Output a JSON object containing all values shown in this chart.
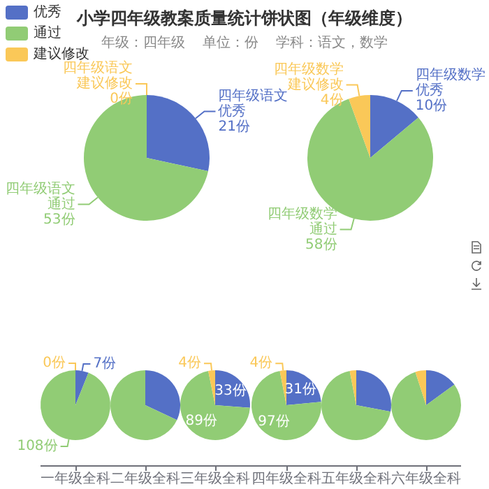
{
  "chart_data": [
    {
      "type": "pie",
      "title": "小学四年级教案质量统计饼状图（年级维度）",
      "subtitle": "年级：四年级    单位：份    学科：语文，数学",
      "legend": "top left",
      "categories": [
        "优秀",
        "通过",
        "建议修改"
      ],
      "series": [
        {
          "name": "四年级语文",
          "values": [
            21,
            53,
            0
          ],
          "colors": [
            "#5470c6",
            "#91cc75",
            "#fac858"
          ],
          "value_labels": [
            "21份",
            "53份",
            "0份"
          ]
        }
      ]
    },
    {
      "type": "pie",
      "categories": [
        "优秀",
        "通过",
        "建议修改"
      ],
      "series": [
        {
          "name": "四年级数学",
          "values": [
            10,
            58,
            4
          ],
          "colors": [
            "#5470c6",
            "#91cc75",
            "#fac858"
          ],
          "value_labels": [
            "10份",
            "58份",
            "4份"
          ]
        }
      ]
    },
    {
      "type": "pie",
      "title": "一年级全科",
      "categories": [
        null,
        null,
        null
      ],
      "values": [
        7,
        108,
        0
      ],
      "colors": [
        "#5470c6",
        "#91cc75",
        "#fac858"
      ],
      "value_labels": [
        "7份",
        "108份",
        "0份"
      ]
    },
    {
      "type": "pie",
      "title": "二年级全科",
      "categories": [
        null,
        null,
        null
      ],
      "values": [
        32,
        68,
        0
      ],
      "colors": [
        "#5470c6",
        "#91cc75",
        "#fac858"
      ]
    },
    {
      "type": "pie",
      "title": "三年级全科",
      "categories": [
        null,
        null,
        null
      ],
      "values": [
        33,
        89,
        4
      ],
      "colors": [
        "#5470c6",
        "#91cc75",
        "#fac858"
      ],
      "value_labels": [
        "33份",
        "89份",
        "4份"
      ]
    },
    {
      "type": "pie",
      "title": "四年级全科",
      "categories": [
        null,
        null,
        null
      ],
      "values": [
        31,
        97,
        4
      ],
      "colors": [
        "#5470c6",
        "#91cc75",
        "#fac858"
      ],
      "value_labels": [
        "31份",
        "97份",
        "4份"
      ]
    },
    {
      "type": "pie",
      "title": "五年级全科",
      "categories": [
        null,
        null,
        null
      ],
      "values": [
        28,
        69,
        3
      ],
      "colors": [
        "#5470c6",
        "#91cc75",
        "#fac858"
      ]
    },
    {
      "type": "pie",
      "title": "六年级全科",
      "categories": [
        null,
        null,
        null
      ],
      "values": [
        15,
        80,
        5
      ],
      "colors": [
        "#5470c6",
        "#91cc75",
        "#fac858"
      ]
    }
  ]
}
